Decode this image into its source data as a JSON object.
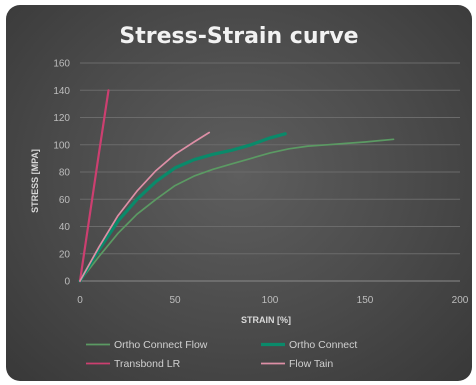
{
  "chart_data": {
    "type": "line",
    "title": "Stress-Strain curve",
    "xlabel": "STRAIN [%]",
    "ylabel": "STRESS [MPA]",
    "xlim": [
      0,
      200
    ],
    "ylim": [
      0,
      160
    ],
    "xticks": [
      0,
      50,
      100,
      150,
      200
    ],
    "yticks": [
      0,
      20,
      40,
      60,
      80,
      100,
      120,
      140,
      160
    ],
    "grid": "horizontal",
    "legend_position": "bottom",
    "series": [
      {
        "name": "Ortho Connect Flow",
        "color": "#5b9a63",
        "x": [
          0,
          10,
          20,
          30,
          40,
          50,
          60,
          70,
          80,
          90,
          100,
          110,
          120,
          130,
          140,
          150,
          165
        ],
        "y": [
          0,
          18,
          35,
          49,
          60,
          70,
          77,
          82,
          86,
          90,
          94,
          97,
          99,
          100,
          101,
          102,
          104
        ]
      },
      {
        "name": "Ortho Connect",
        "color": "#0a8a6a",
        "x": [
          0,
          10,
          20,
          30,
          40,
          50,
          60,
          70,
          80,
          90,
          100,
          108
        ],
        "y": [
          0,
          23,
          44,
          60,
          73,
          83,
          89,
          93,
          96,
          100,
          105,
          108
        ]
      },
      {
        "name": "Transbond LR",
        "color": "#cc3f70",
        "x": [
          0,
          5,
          10,
          15
        ],
        "y": [
          0,
          47,
          94,
          140
        ]
      },
      {
        "name": "Flow Tain",
        "color": "#dd8fa6",
        "x": [
          0,
          10,
          20,
          30,
          40,
          50,
          60,
          68
        ],
        "y": [
          0,
          25,
          48,
          66,
          81,
          93,
          102,
          109
        ]
      }
    ]
  }
}
